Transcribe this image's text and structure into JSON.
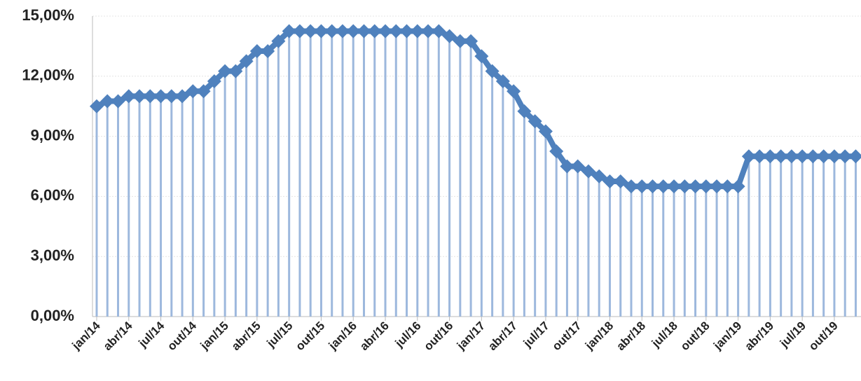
{
  "chart_data": {
    "type": "line",
    "categories": [
      "jan/14",
      null,
      null,
      "abr/14",
      null,
      null,
      "jul/14",
      null,
      null,
      "out/14",
      null,
      null,
      "jan/15",
      null,
      null,
      "abr/15",
      null,
      null,
      "jul/15",
      null,
      null,
      "out/15",
      null,
      null,
      "jan/16",
      null,
      null,
      "abr/16",
      null,
      null,
      "jul/16",
      null,
      null,
      "out/16",
      null,
      null,
      "jan/17",
      null,
      null,
      "abr/17",
      null,
      null,
      "jul/17",
      null,
      null,
      "out/17",
      null,
      null,
      "jan/18",
      null,
      null,
      "abr/18",
      null,
      null,
      "jul/18",
      null,
      null,
      "out/18",
      null,
      null,
      "jan/19",
      null,
      null,
      "abr/19",
      null,
      null,
      "jul/19",
      null,
      null,
      "out/19",
      null,
      null
    ],
    "series": [
      {
        "color": "#4f81bd",
        "drop_color": "#9db8dd",
        "values": [
          10.5,
          10.75,
          10.75,
          11,
          11,
          11,
          11,
          11,
          11,
          11.25,
          11.25,
          11.75,
          12.25,
          12.25,
          12.75,
          13.25,
          13.25,
          13.75,
          14.25,
          14.25,
          14.25,
          14.25,
          14.25,
          14.25,
          14.25,
          14.25,
          14.25,
          14.25,
          14.25,
          14.25,
          14.25,
          14.25,
          14.25,
          14,
          13.75,
          13.75,
          13,
          12.25,
          11.75,
          11.25,
          10.25,
          9.75,
          9.25,
          8.25,
          7.5,
          7.5,
          7.25,
          7,
          6.75,
          6.75,
          6.5,
          6.5,
          6.5,
          6.5,
          6.5,
          6.5,
          6.5,
          6.5,
          6.5,
          6.5,
          6.5,
          8,
          8,
          8,
          8,
          8,
          8,
          8,
          8,
          8,
          8,
          8
        ]
      }
    ],
    "ylim": [
      0,
      15
    ],
    "yticks": [
      {
        "value": 0,
        "label": "0,00%"
      },
      {
        "value": 3,
        "label": "3,00%"
      },
      {
        "value": 6,
        "label": "6,00%"
      },
      {
        "value": 9,
        "label": "9,00%"
      },
      {
        "value": 12,
        "label": "12,00%"
      },
      {
        "value": 15,
        "label": "15,00%"
      }
    ],
    "grid": true
  }
}
